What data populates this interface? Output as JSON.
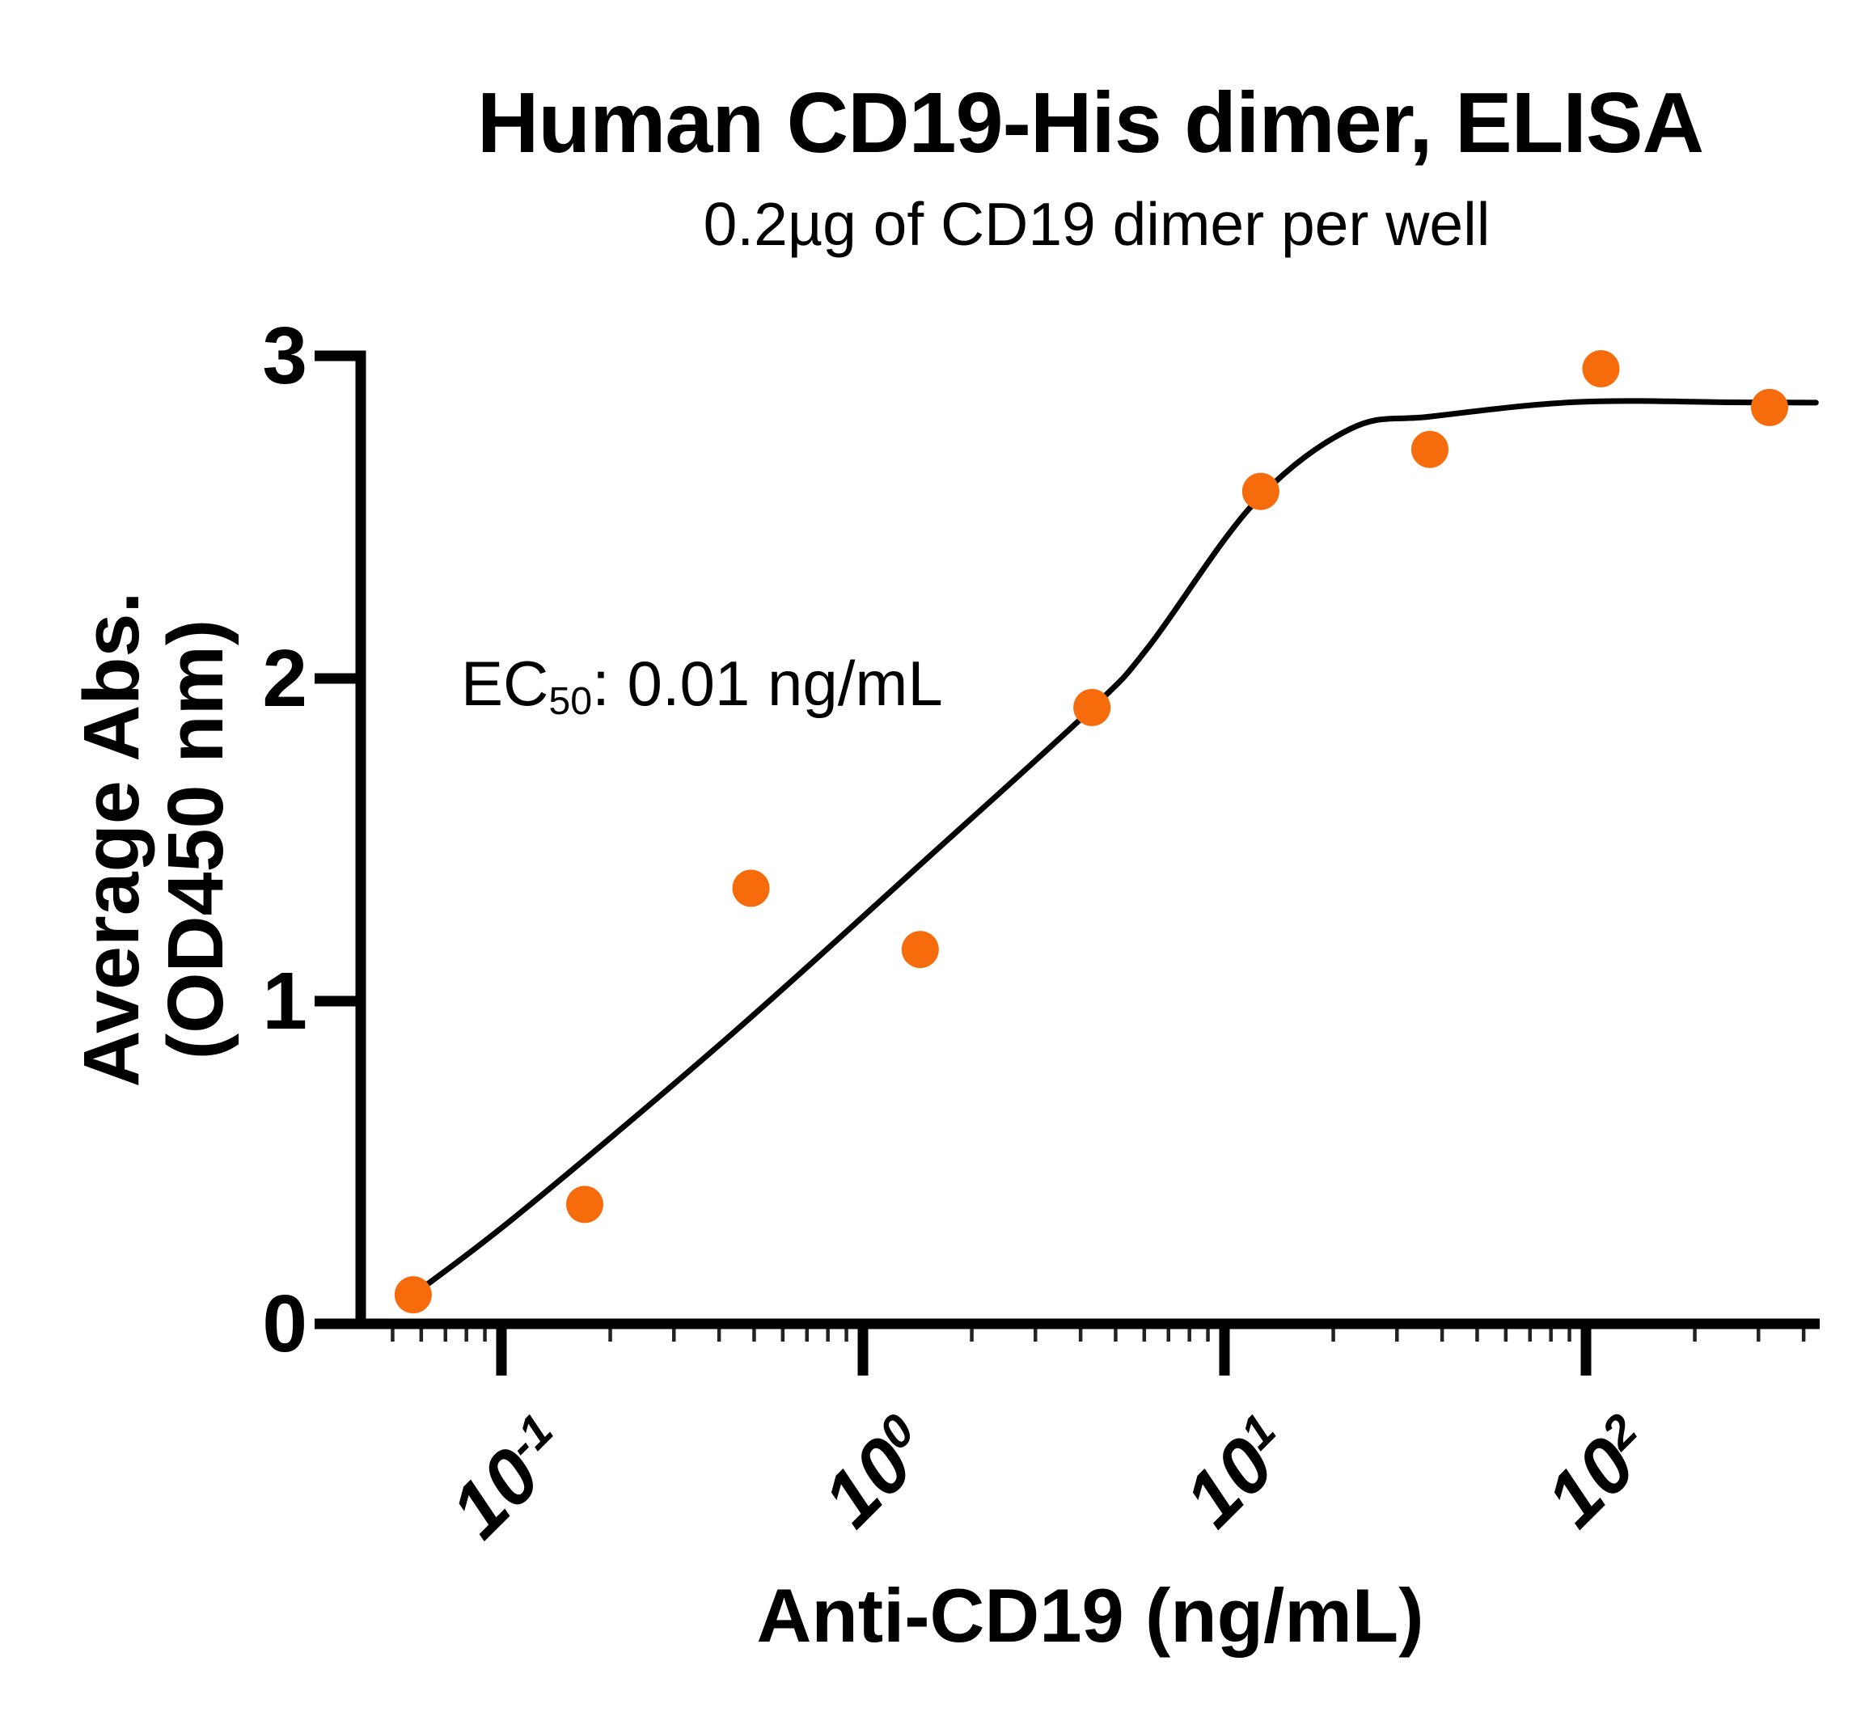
{
  "title": "Human CD19-His dimer, ELISA",
  "subtitle": "0.2µg of CD19 dimer per well",
  "annotation": {
    "prefix": "EC",
    "subscript": "50",
    "suffix": ": 0.01 ng/mL"
  },
  "x_axis": {
    "title": "Anti-CD19 (ng/mL)",
    "scale": "log10",
    "major_ticks": [
      {
        "base": "10",
        "exp": "-1",
        "value": 0.1
      },
      {
        "base": "10",
        "exp": "0",
        "value": 1
      },
      {
        "base": "10",
        "exp": "1",
        "value": 10
      },
      {
        "base": "10",
        "exp": "2",
        "value": 100
      }
    ],
    "minor_ticks": [
      0.05,
      0.06,
      0.07,
      0.08,
      0.09,
      0.2,
      0.3,
      0.4,
      0.5,
      0.6,
      0.7,
      0.8,
      0.9,
      2,
      3,
      4,
      5,
      6,
      7,
      8,
      9,
      20,
      30,
      40,
      50,
      60,
      70,
      80,
      90,
      200,
      300,
      400
    ],
    "range_log10": [
      -1.389,
      2.646
    ]
  },
  "y_axis": {
    "title_line1": "Average Abs.",
    "title_line2": "(OD450 nm)",
    "ticks": [
      0,
      1,
      2,
      3
    ],
    "range": [
      0,
      3
    ]
  },
  "colors": {
    "marker": "#F66B0C",
    "curve": "#000000",
    "axis": "#000000",
    "minor_tick": "#222222",
    "text": "#000000",
    "background": "#ffffff"
  },
  "chart_data": {
    "type": "scatter",
    "title": "Human CD19-His dimer, ELISA",
    "subtitle": "0.2µg of CD19 dimer per well",
    "xlabel": "Anti-CD19 (ng/mL)",
    "ylabel": "Average Abs. (OD450 nm)",
    "x_scale": "log10",
    "xlim": [
      0.041,
      440
    ],
    "ylim": [
      0,
      3
    ],
    "grid": false,
    "legend": "none",
    "ec50_text": "EC50: 0.01 ng/mL",
    "points": [
      {
        "x": 0.057,
        "y": 0.09
      },
      {
        "x": 0.17,
        "y": 0.37
      },
      {
        "x": 0.49,
        "y": 1.35
      },
      {
        "x": 1.44,
        "y": 1.16
      },
      {
        "x": 4.3,
        "y": 1.91
      },
      {
        "x": 12.6,
        "y": 2.58
      },
      {
        "x": 37,
        "y": 2.71
      },
      {
        "x": 110,
        "y": 2.96
      },
      {
        "x": 322,
        "y": 2.84
      }
    ],
    "fit_curve_log_samples": [
      [
        -1.244,
        0.09
      ],
      [
        -0.949,
        0.343
      ],
      [
        -0.374,
        0.887
      ],
      [
        0.186,
        1.451
      ],
      [
        0.633,
        1.907
      ],
      [
        0.79,
        2.098
      ],
      [
        1.08,
        2.541
      ],
      [
        1.349,
        2.774
      ],
      [
        1.572,
        2.812
      ],
      [
        1.975,
        2.857
      ],
      [
        2.4,
        2.856
      ],
      [
        2.636,
        2.855
      ]
    ]
  }
}
